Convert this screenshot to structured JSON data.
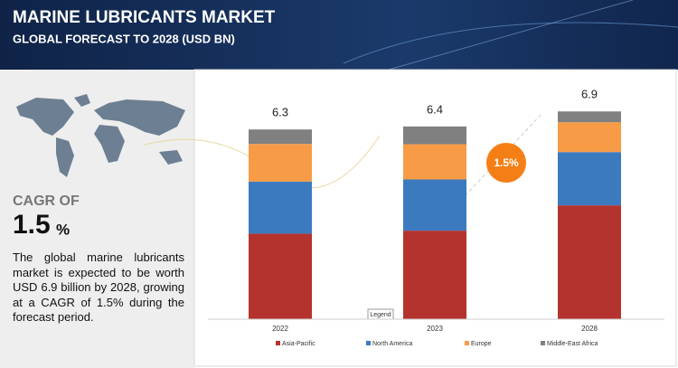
{
  "header": {
    "title": "MARINE LUBRICANTS MARKET",
    "subtitle": "GLOBAL FORECAST TO 2028 (USD BN)"
  },
  "summary": {
    "cagr_label": "CAGR OF",
    "cagr_value": "1.5",
    "cagr_unit": "%",
    "text": "The global marine lubricants market is expected to be worth USD 6.9 billion by 2028, growing at a CAGR of 1.5% during the forecast period."
  },
  "chart_data": {
    "type": "stacked-bar",
    "categories": [
      "2022",
      "2023",
      "2028"
    ],
    "totals": [
      6.3,
      6.4,
      6.9
    ],
    "annotation": "1.5%",
    "legend_title": "Legend",
    "series": [
      {
        "name": "Asia-Pacific",
        "color": "#b5332e",
        "values": [
          2.84,
          2.94,
          3.78
        ]
      },
      {
        "name": "North America",
        "color": "#3c7abf",
        "values": [
          1.73,
          1.7,
          1.77
        ]
      },
      {
        "name": "Europe",
        "color": "#f89b47",
        "values": [
          1.25,
          1.17,
          0.99
        ]
      },
      {
        "name": "Middle-East Africa",
        "color": "#808080",
        "values": [
          0.48,
          0.59,
          0.36
        ]
      }
    ]
  }
}
